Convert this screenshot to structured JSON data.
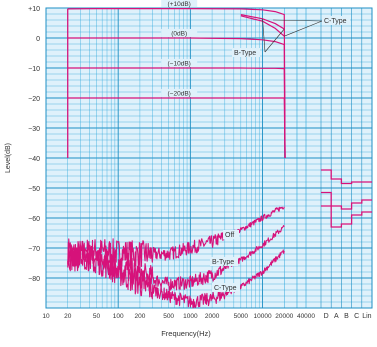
{
  "chart_data": {
    "type": "line",
    "ylabel": "Level(dB)",
    "xlabel": "Frequency(Hz)",
    "y_ticks": [
      10,
      0,
      -10,
      -20,
      -30,
      -40,
      -50,
      -60,
      -70,
      -80
    ],
    "y_tick_labels": [
      "+10",
      "0",
      "−10",
      "−20",
      "−30",
      "−40",
      "−50",
      "−60",
      "−70",
      "−80"
    ],
    "x_ticks": [
      10,
      20,
      50,
      100,
      200,
      500,
      1000,
      2000,
      5000,
      10000,
      20000,
      40000
    ],
    "x_tick_labels": [
      "10",
      "20",
      "50",
      "100",
      "200",
      "500",
      "1000",
      "2000",
      "5000",
      "10000",
      "20000",
      "40000"
    ],
    "xlim": [
      10,
      40000
    ],
    "ylim": [
      -90,
      10
    ],
    "extra_tick_labels": [
      "D",
      "A",
      "B",
      "C",
      "Lin"
    ],
    "level_labels": [
      "(+10dB)",
      "(0dB)",
      "(−10dB)",
      "(−20dB)"
    ],
    "series": [
      {
        "name": "(+10dB)",
        "x": [
          20,
          50,
          100,
          1000,
          5000,
          10000,
          15000,
          20000,
          20500
        ],
        "y": [
          9.7,
          9.8,
          9.8,
          9.8,
          9.7,
          9.4,
          8.8,
          7.8,
          -40
        ]
      },
      {
        "name": "(0dB)",
        "x": [
          20,
          50,
          100,
          1000,
          5000,
          10000,
          15000,
          20000,
          20500
        ],
        "y": [
          0,
          0,
          0,
          0,
          -0.2,
          -0.6,
          -1.2,
          -2.2,
          -40
        ]
      },
      {
        "name": "(−10dB)",
        "x": [
          20,
          50,
          100,
          1000,
          5000,
          10000,
          15000,
          20000,
          20500
        ],
        "y": [
          -10,
          -10,
          -10,
          -10,
          -10,
          -10.1,
          -10.1,
          -10.2,
          -40
        ]
      },
      {
        "name": "(−20dB)",
        "x": [
          20,
          50,
          100,
          1000,
          5000,
          10000,
          15000,
          20000,
          20500
        ],
        "y": [
          -20,
          -20,
          -20,
          -20,
          -20,
          -20,
          -20,
          -20,
          -40
        ]
      },
      {
        "name": "B-Type",
        "x": [
          5000,
          10000,
          15000,
          20000
        ],
        "y": [
          7.8,
          6.4,
          4.8,
          3.0
        ]
      },
      {
        "name": "C-Type",
        "x": [
          5000,
          10000,
          15000,
          20000
        ],
        "y": [
          7.4,
          5.6,
          3.2,
          0.6
        ]
      }
    ],
    "noise_series": [
      {
        "name": "Off",
        "x": [
          20,
          50,
          100,
          200,
          500,
          1000,
          2000,
          5000,
          10000,
          20000
        ],
        "y": [
          -72,
          -71,
          -71.5,
          -72,
          -72,
          -70,
          -68,
          -64,
          -60,
          -56
        ]
      },
      {
        "name": "B-Type",
        "x": [
          20,
          50,
          100,
          200,
          500,
          1000,
          2000,
          5000,
          10000,
          20000
        ],
        "y": [
          -73,
          -74,
          -76,
          -79,
          -82,
          -81.5,
          -79,
          -74,
          -69,
          -63
        ]
      },
      {
        "name": "C-Type",
        "x": [
          20,
          50,
          100,
          200,
          500,
          1000,
          2000,
          5000,
          10000,
          20000
        ],
        "y": [
          -71,
          -74,
          -78,
          -82,
          -86,
          -88,
          -87,
          -83,
          -78,
          -71
        ]
      }
    ],
    "weighted_levels": {
      "categories": [
        "D",
        "A",
        "B",
        "C",
        "Lin"
      ],
      "series": [
        {
          "name": "Off",
          "values": [
            -44,
            -47,
            -48.5,
            -48,
            -48
          ]
        },
        {
          "name": "B-Type",
          "values": [
            -51.5,
            -56,
            -57,
            -55,
            -54
          ]
        },
        {
          "name": "C-Type",
          "values": [
            -56,
            -63,
            -62,
            -59,
            -58
          ]
        }
      ]
    },
    "annotations": {
      "off": "Off",
      "b_type": "B-Type",
      "c_type": "C-Type"
    }
  },
  "colors": {
    "background": "#ffffff",
    "plot_bg": "#dff1fb",
    "grid": "#2ea8dc",
    "grid_major": "#1d8fc4",
    "trace": "#d6127a",
    "text": "#333333"
  }
}
